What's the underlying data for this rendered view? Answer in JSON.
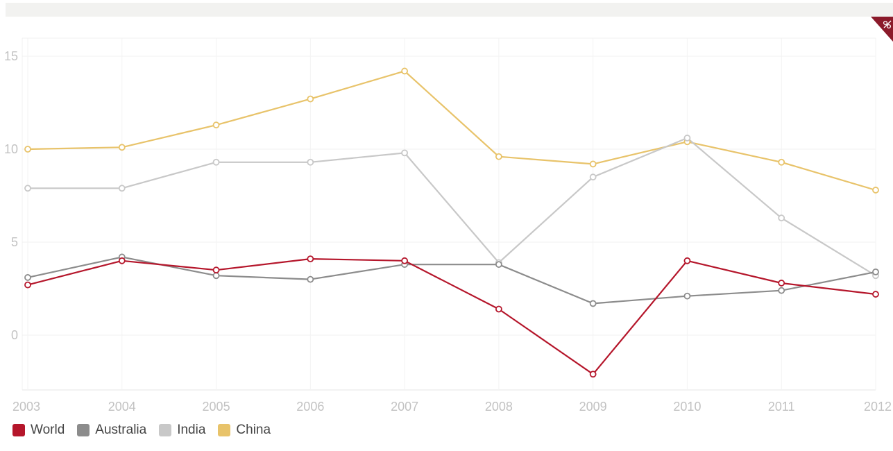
{
  "chart_data": {
    "type": "line",
    "x": [
      "2003",
      "2004",
      "2005",
      "2006",
      "2007",
      "2008",
      "2009",
      "2010",
      "2011",
      "2012"
    ],
    "series": [
      {
        "name": "World",
        "color": "#b5162b",
        "values": [
          2.7,
          4.0,
          3.5,
          4.1,
          4.0,
          1.4,
          -2.1,
          4.0,
          2.8,
          2.2
        ]
      },
      {
        "name": "Australia",
        "color": "#8c8c8c",
        "values": [
          3.1,
          4.2,
          3.2,
          3.0,
          3.8,
          3.8,
          1.7,
          2.1,
          2.4,
          3.4
        ]
      },
      {
        "name": "India",
        "color": "#c8c8c8",
        "values": [
          7.9,
          7.9,
          9.3,
          9.3,
          9.8,
          3.9,
          8.5,
          10.6,
          6.3,
          3.2
        ]
      },
      {
        "name": "China",
        "color": "#e8c36a",
        "values": [
          10.0,
          10.1,
          11.3,
          12.7,
          14.2,
          9.6,
          9.2,
          10.4,
          9.3,
          7.8
        ]
      }
    ],
    "yticks": [
      0,
      5,
      10,
      15
    ],
    "ylim": [
      -3,
      16
    ],
    "grid": true,
    "legend_position": "bottom-left"
  }
}
